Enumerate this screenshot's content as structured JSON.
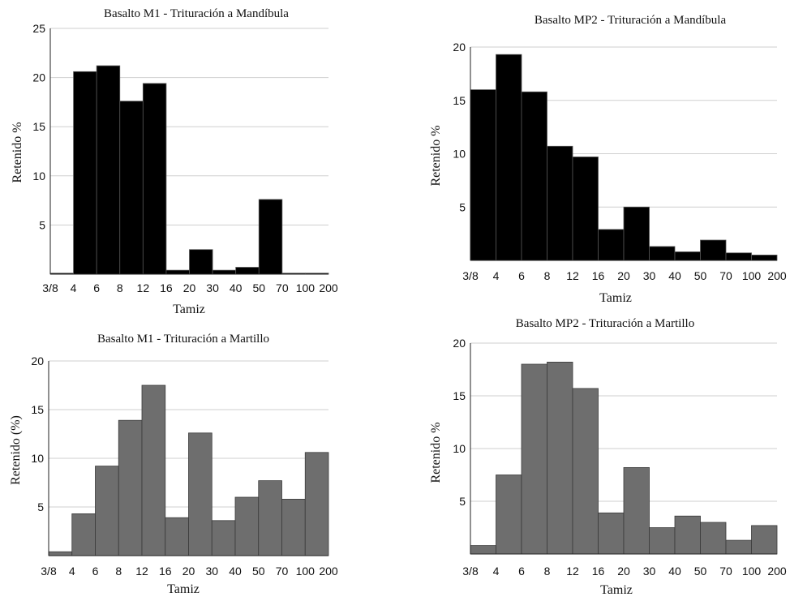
{
  "chart_data": [
    {
      "type": "bar",
      "title": "Basalto M1 - Trituración a Mandíbula",
      "xlabel": "Tamiz",
      "ylabel": "Retenido %",
      "ylim": [
        0,
        25
      ],
      "yticks": [
        5,
        10,
        15,
        20,
        25
      ],
      "edges": [
        "3/8",
        "4",
        "6",
        "8",
        "12",
        "16",
        "20",
        "30",
        "40",
        "50",
        "70",
        "100",
        "200"
      ],
      "values": [
        0.1,
        20.6,
        21.2,
        17.6,
        19.4,
        0.4,
        2.5,
        0.4,
        0.7,
        7.6,
        0.1,
        0.1
      ],
      "bar_color": "#000000",
      "grid": true
    },
    {
      "type": "bar",
      "title": "Basalto MP2 - Trituración a Mandíbula",
      "xlabel": "Tamiz",
      "ylabel": "Retenido %",
      "ylim": [
        0,
        20
      ],
      "yticks": [
        5,
        10,
        15,
        20
      ],
      "edges": [
        "3/8",
        "4",
        "6",
        "8",
        "12",
        "16",
        "20",
        "30",
        "40",
        "50",
        "70",
        "100",
        "200"
      ],
      "values": [
        16.0,
        19.3,
        15.8,
        10.7,
        9.7,
        2.9,
        5.0,
        1.3,
        0.8,
        1.9,
        0.7,
        0.5
      ],
      "bar_color": "#000000",
      "grid": true
    },
    {
      "type": "bar",
      "title": "Basalto M1 - Trituración a Martillo",
      "xlabel": "Tamiz",
      "ylabel": "Retenido (%)",
      "ylim": [
        0,
        20
      ],
      "yticks": [
        5,
        10,
        15,
        20
      ],
      "edges": [
        "3/8",
        "4",
        "6",
        "8",
        "12",
        "16",
        "20",
        "30",
        "40",
        "50",
        "70",
        "100",
        "200"
      ],
      "values": [
        0.4,
        4.3,
        9.2,
        13.9,
        17.5,
        3.9,
        12.6,
        3.6,
        6.0,
        7.7,
        5.8,
        10.6
      ],
      "bar_color": "#6e6e6e",
      "grid": true
    },
    {
      "type": "bar",
      "title": "Basalto MP2 - Trituración a Martillo",
      "xlabel": "Tamiz",
      "ylabel": "Retenido %",
      "ylim": [
        0,
        20
      ],
      "yticks": [
        5,
        10,
        15,
        20
      ],
      "edges": [
        "3/8",
        "4",
        "6",
        "8",
        "12",
        "16",
        "20",
        "30",
        "40",
        "50",
        "70",
        "100",
        "200"
      ],
      "values": [
        0.8,
        7.5,
        18.0,
        18.2,
        15.7,
        3.9,
        8.2,
        2.5,
        3.6,
        3.0,
        1.3,
        2.7
      ],
      "bar_color": "#6e6e6e",
      "grid": true
    }
  ]
}
